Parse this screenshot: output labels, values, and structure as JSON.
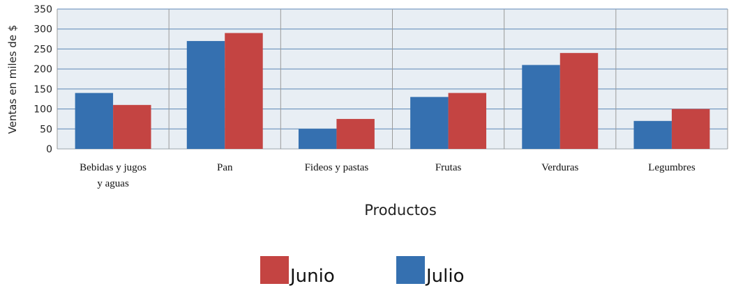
{
  "chart_data": {
    "type": "bar",
    "categories": [
      [
        "Bebidas y jugos",
        "y aguas"
      ],
      [
        "Pan"
      ],
      [
        "Fideos y pastas"
      ],
      [
        "Frutas"
      ],
      [
        "Verduras"
      ],
      [
        "Legumbres"
      ]
    ],
    "series": [
      {
        "name": "Julio",
        "color": "#3570b0",
        "values": [
          140,
          270,
          50,
          130,
          210,
          70
        ]
      },
      {
        "name": "Junio",
        "color": "#c44442",
        "values": [
          110,
          290,
          75,
          140,
          240,
          100
        ]
      }
    ],
    "legend_order": [
      "Junio",
      "Julio"
    ],
    "xlabel": "Productos",
    "ylabel": "Ventas en miles de $",
    "ylim": [
      0,
      350
    ],
    "yticks": [
      0,
      50,
      100,
      150,
      200,
      250,
      300,
      350
    ],
    "grid": true,
    "plot_background": "#e8eef4",
    "gridline_color": "#5b86b5",
    "legend_position": "bottom-center"
  }
}
